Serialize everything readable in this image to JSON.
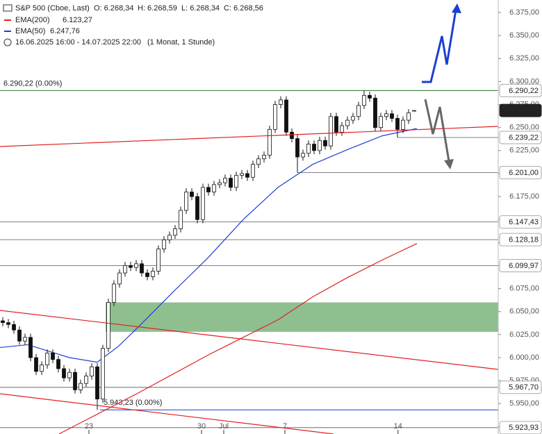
{
  "chart_data": {
    "type": "candlestick",
    "header": {
      "symbol": "S&P 500 (Cboe, Last)",
      "ohlc": [
        "O: 6.268,34",
        "H: 6.268,59",
        "L: 6.268,34",
        "C: 6.268,56"
      ],
      "range": "16.06.2025 16:00 - 14.07.2025 22:00",
      "period": "(1 Monat, 1 Stunde)"
    },
    "xlim": [
      -0.5,
      89.125
    ],
    "ylim": [
      5917,
      6388.6
    ],
    "xticks": [
      {
        "value": 15.5,
        "label": "23"
      },
      {
        "value": 35.75,
        "label": "30"
      },
      {
        "value": 39.75,
        "label": "Jul"
      },
      {
        "value": 50.75,
        "label": "7"
      },
      {
        "value": 71.1,
        "label": "14"
      }
    ],
    "yticks": [
      {
        "value": 6375,
        "label": "6.375,00"
      },
      {
        "value": 6350,
        "label": "6.350,00"
      },
      {
        "value": 6325,
        "label": "6.325,00"
      },
      {
        "value": 6300,
        "label": "6.300,00"
      },
      {
        "value": 6275,
        "label": "6.275,00"
      },
      {
        "value": 6250,
        "label": "6.250,00"
      },
      {
        "value": 6225,
        "label": "6.225,00"
      },
      {
        "value": 6200,
        "label": "6.200,00"
      },
      {
        "value": 6175,
        "label": "6.175,00"
      },
      {
        "value": 6150,
        "label": "6.150,00"
      },
      {
        "value": 6125,
        "label": "6.125,00"
      },
      {
        "value": 6100,
        "label": "6.100,00"
      },
      {
        "value": 6075,
        "label": "6.075,00"
      },
      {
        "value": 6050,
        "label": "6.050,00"
      },
      {
        "value": 6025,
        "label": "6.025,00"
      },
      {
        "value": 6000,
        "label": "6.000,00"
      },
      {
        "value": 5975,
        "label": "5.975,00"
      },
      {
        "value": 5950,
        "label": "5.950,00"
      },
      {
        "value": 5925,
        "label": "5.925,00"
      }
    ],
    "candles": {
      "open": [
        6040,
        6038,
        6036,
        6030,
        6018,
        6022,
        6000,
        5985,
        5992,
        6005,
        5998,
        5988,
        5978,
        5984,
        5965,
        5972,
        5980,
        5990,
        5955,
        6010,
        6060,
        6080,
        6092,
        6100,
        6098,
        6102,
        6092,
        6088,
        6094,
        6118,
        6128,
        6133,
        6140,
        6160,
        6180,
        6175,
        6150,
        6185,
        6180,
        6188,
        6190,
        6195,
        6185,
        6198,
        6200,
        6196,
        6210,
        6216,
        6220,
        6248,
        6275,
        6280,
        6245,
        6238,
        6218,
        6222,
        6232,
        6225,
        6236,
        6230,
        6262,
        6245,
        6252,
        6258,
        6262,
        6274,
        6285,
        6282,
        6250,
        6262,
        6265,
        6260,
        6248,
        6258,
        6268.34
      ],
      "high": [
        6044,
        6042,
        6040,
        6034,
        6026,
        6026,
        6004,
        5996,
        6009,
        6009,
        6002,
        5992,
        5988,
        5988,
        5976,
        5984,
        5994,
        5994,
        6014,
        6064,
        6084,
        6096,
        6104,
        6104,
        6106,
        6106,
        6096,
        6098,
        6122,
        6132,
        6137,
        6144,
        6164,
        6184,
        6184,
        6179,
        6189,
        6189,
        6192,
        6194,
        6199,
        6199,
        6202,
        6204,
        6204,
        6214,
        6220,
        6224,
        6252,
        6279,
        6284,
        6284,
        6249,
        6242,
        6226,
        6236,
        6236,
        6240,
        6240,
        6266,
        6266,
        6256,
        6262,
        6266,
        6278,
        6290.22,
        6289,
        6286,
        6266,
        6269,
        6269,
        6264,
        6262,
        6270,
        6268.59
      ],
      "low": [
        6034,
        6032,
        6026,
        6014,
        6014,
        5996,
        5981,
        5981,
        5988,
        5994,
        5984,
        5974,
        5974,
        5961,
        5961,
        5968,
        5976,
        5943.23,
        5951,
        6006,
        6056,
        6076,
        6088,
        6094,
        6094,
        6088,
        6084,
        6084,
        6090,
        6114,
        6124,
        6129,
        6136,
        6156,
        6171,
        6146,
        6146,
        6176,
        6176,
        6184,
        6186,
        6181,
        6181,
        6194,
        6192,
        6192,
        6206,
        6212,
        6216,
        6244,
        6271,
        6241,
        6234,
        6201,
        6214,
        6218,
        6221,
        6221,
        6226,
        6226,
        6241,
        6241,
        6248,
        6254,
        6258,
        6270,
        6278,
        6246,
        6246,
        6258,
        6256,
        6239.22,
        6244,
        6254,
        6268.34
      ],
      "close": [
        6038,
        6036,
        6030,
        6018,
        6022,
        6000,
        5985,
        5992,
        6005,
        5998,
        5988,
        5978,
        5984,
        5965,
        5972,
        5980,
        5990,
        5955,
        6010,
        6060,
        6080,
        6092,
        6100,
        6098,
        6102,
        6092,
        6088,
        6094,
        6118,
        6128,
        6133,
        6140,
        6160,
        6180,
        6175,
        6150,
        6185,
        6180,
        6188,
        6190,
        6195,
        6185,
        6198,
        6200,
        6196,
        6210,
        6216,
        6220,
        6248,
        6275,
        6280,
        6245,
        6238,
        6218,
        6222,
        6232,
        6225,
        6236,
        6230,
        6262,
        6245,
        6252,
        6258,
        6262,
        6274,
        6285,
        6282,
        6250,
        6262,
        6265,
        6260,
        6248,
        6258,
        6266,
        6268.56
      ]
    },
    "series": [
      {
        "name": "EMA(200)",
        "value_label": "6.123,27",
        "color": "#e02020",
        "x": [
          10.1,
          24.5,
          37,
          49.5,
          55.75,
          62,
          68.25,
          74.5
        ],
        "values": [
          5917,
          5962,
          6003,
          6041,
          6066,
          6087,
          6106,
          6124
        ]
      },
      {
        "name": "EMA(50)",
        "value_label": "6.247,76",
        "color": "#2040d0",
        "x": [
          -0.5,
          4.5,
          12,
          17,
          20.75,
          24.5,
          30.75,
          37,
          43.25,
          49.5,
          55.75,
          62,
          68.25,
          74.5
        ],
        "values": [
          6011,
          6014,
          6000,
          5995,
          6012,
          6034,
          6072,
          6109,
          6150,
          6185,
          6210,
          6226,
          6241,
          6249
        ]
      }
    ],
    "zone": {
      "low": 6028,
      "high": 6060,
      "x": 18.5,
      "color": "#8fbf8f"
    },
    "annotations": [
      {
        "value": 6290.22,
        "label": "6.290,22 (0.00%)",
        "color": "#2e7d32",
        "x": -0.5
      },
      {
        "value": 5943.23,
        "label": "5.943,23 (0.00%)",
        "color": "#1a3fd1",
        "x": 17.5
      }
    ],
    "levels": [
      {
        "value": 6290.22,
        "label": "6.290,22",
        "x": 49.5
      },
      {
        "value": 6239.22,
        "label": "6.239,22",
        "x": 71
      },
      {
        "value": 6201,
        "label": "6.201,00",
        "x": 53
      },
      {
        "value": 6147.43,
        "label": "6.147,43",
        "x": -0.5
      },
      {
        "value": 6128.18,
        "label": "6.128,18",
        "x": -0.5
      },
      {
        "value": 6099.97,
        "label": "6.099,97",
        "x": -0.5
      },
      {
        "value": 5967.7,
        "label": "5.967,70",
        "x": -0.5
      },
      {
        "value": 5923.93,
        "label": "5.923,93",
        "x": -0.5
      }
    ],
    "last_price": {
      "value": 6268.56,
      "label": "6.268,56"
    }
  }
}
